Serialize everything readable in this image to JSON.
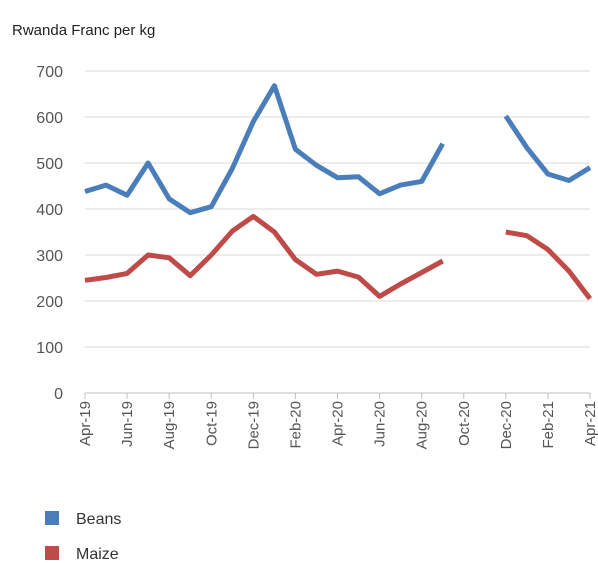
{
  "chart_data": {
    "type": "line",
    "title": "",
    "ylabel": "Rwanda Franc per kg",
    "xlabel": "",
    "ylim": [
      0,
      700
    ],
    "yticks": [
      0,
      100,
      200,
      300,
      400,
      500,
      600,
      700
    ],
    "x": [
      "Apr-19",
      "May-19",
      "Jun-19",
      "Jul-19",
      "Aug-19",
      "Sep-19",
      "Oct-19",
      "Nov-19",
      "Dec-19",
      "Jan-20",
      "Feb-20",
      "Mar-20",
      "Apr-20",
      "May-20",
      "Jun-20",
      "Jul-20",
      "Aug-20",
      "Sep-20",
      "Oct-20",
      "Nov-20",
      "Dec-20",
      "Jan-21",
      "Feb-21",
      "Mar-21",
      "Apr-21"
    ],
    "xtick_labels": [
      "Apr-19",
      "Jun-19",
      "Aug-19",
      "Oct-19",
      "Dec-19",
      "Feb-20",
      "Apr-20",
      "Jun-20",
      "Aug-20",
      "Oct-20",
      "Dec-20",
      "Feb-21",
      "Apr-21"
    ],
    "grid": true,
    "legend_position": "bottom-left",
    "series": [
      {
        "name": "Beans",
        "color": "#4a7ebb",
        "values": [
          438,
          452,
          430,
          500,
          422,
          392,
          405,
          488,
          590,
          668,
          530,
          495,
          468,
          470,
          433,
          452,
          460,
          542,
          null,
          null,
          602,
          533,
          476,
          462,
          490
        ]
      },
      {
        "name": "Maize",
        "color": "#be4b48",
        "values": [
          245,
          251,
          260,
          300,
          294,
          255,
          300,
          352,
          384,
          350,
          290,
          258,
          265,
          252,
          210,
          237,
          262,
          287,
          null,
          null,
          350,
          342,
          312,
          265,
          205
        ]
      }
    ]
  }
}
